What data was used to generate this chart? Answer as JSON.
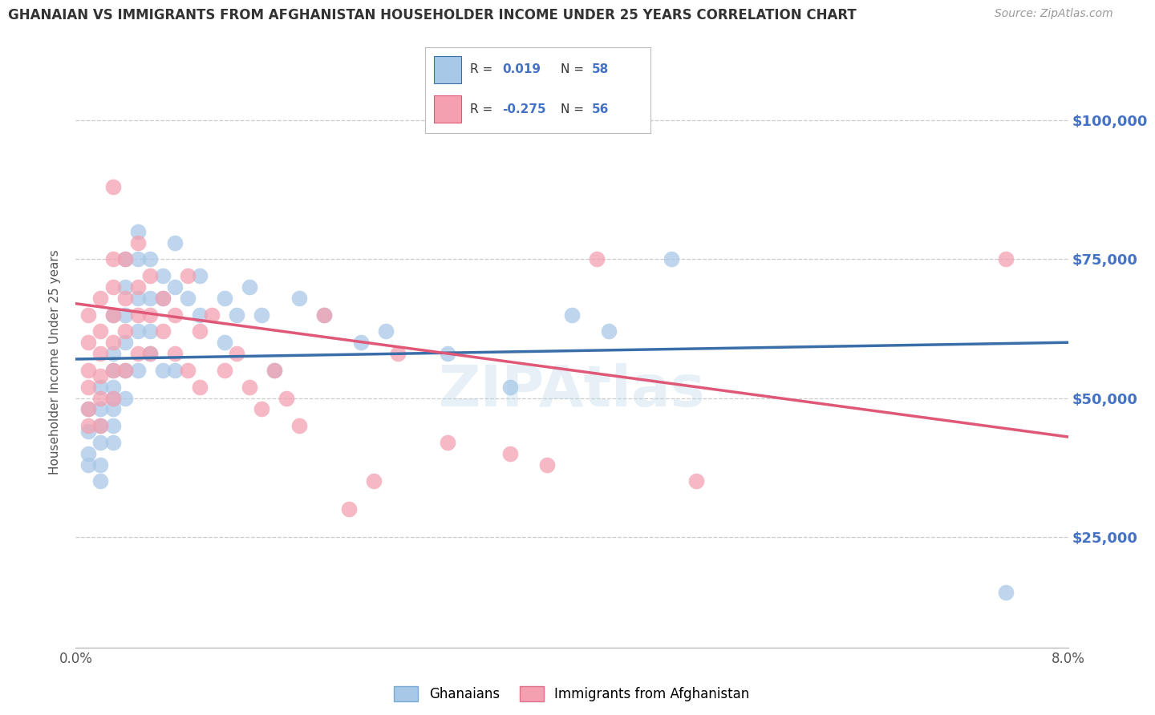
{
  "title": "GHANAIAN VS IMMIGRANTS FROM AFGHANISTAN HOUSEHOLDER INCOME UNDER 25 YEARS CORRELATION CHART",
  "source": "Source: ZipAtlas.com",
  "ylabel": "Householder Income Under 25 years",
  "legend_label_blue": "Ghanaians",
  "legend_label_pink": "Immigrants from Afghanistan",
  "ytick_labels": [
    "$25,000",
    "$50,000",
    "$75,000",
    "$100,000"
  ],
  "ytick_values": [
    25000,
    50000,
    75000,
    100000
  ],
  "blue_color": "#A8C8E8",
  "pink_color": "#F4A0B0",
  "blue_line_color": "#3A6EA8",
  "pink_line_color": "#E05878",
  "background_color": "#FFFFFF",
  "blue_dots": [
    [
      0.001,
      48000
    ],
    [
      0.001,
      44000
    ],
    [
      0.001,
      40000
    ],
    [
      0.001,
      38000
    ],
    [
      0.002,
      52000
    ],
    [
      0.002,
      48000
    ],
    [
      0.002,
      45000
    ],
    [
      0.002,
      42000
    ],
    [
      0.002,
      38000
    ],
    [
      0.002,
      35000
    ],
    [
      0.003,
      55000
    ],
    [
      0.003,
      52000
    ],
    [
      0.003,
      50000
    ],
    [
      0.003,
      48000
    ],
    [
      0.003,
      45000
    ],
    [
      0.003,
      42000
    ],
    [
      0.003,
      58000
    ],
    [
      0.003,
      65000
    ],
    [
      0.004,
      75000
    ],
    [
      0.004,
      70000
    ],
    [
      0.004,
      65000
    ],
    [
      0.004,
      60000
    ],
    [
      0.004,
      55000
    ],
    [
      0.004,
      50000
    ],
    [
      0.005,
      80000
    ],
    [
      0.005,
      75000
    ],
    [
      0.005,
      68000
    ],
    [
      0.005,
      62000
    ],
    [
      0.005,
      55000
    ],
    [
      0.006,
      75000
    ],
    [
      0.006,
      68000
    ],
    [
      0.006,
      62000
    ],
    [
      0.006,
      58000
    ],
    [
      0.007,
      72000
    ],
    [
      0.007,
      68000
    ],
    [
      0.007,
      55000
    ],
    [
      0.008,
      78000
    ],
    [
      0.008,
      70000
    ],
    [
      0.008,
      55000
    ],
    [
      0.009,
      68000
    ],
    [
      0.01,
      72000
    ],
    [
      0.01,
      65000
    ],
    [
      0.012,
      68000
    ],
    [
      0.012,
      60000
    ],
    [
      0.013,
      65000
    ],
    [
      0.014,
      70000
    ],
    [
      0.015,
      65000
    ],
    [
      0.016,
      55000
    ],
    [
      0.018,
      68000
    ],
    [
      0.02,
      65000
    ],
    [
      0.023,
      60000
    ],
    [
      0.025,
      62000
    ],
    [
      0.03,
      58000
    ],
    [
      0.035,
      52000
    ],
    [
      0.04,
      65000
    ],
    [
      0.043,
      62000
    ],
    [
      0.048,
      75000
    ],
    [
      0.075,
      15000
    ]
  ],
  "pink_dots": [
    [
      0.001,
      65000
    ],
    [
      0.001,
      60000
    ],
    [
      0.001,
      55000
    ],
    [
      0.001,
      52000
    ],
    [
      0.001,
      48000
    ],
    [
      0.001,
      45000
    ],
    [
      0.002,
      68000
    ],
    [
      0.002,
      62000
    ],
    [
      0.002,
      58000
    ],
    [
      0.002,
      54000
    ],
    [
      0.002,
      50000
    ],
    [
      0.002,
      45000
    ],
    [
      0.003,
      75000
    ],
    [
      0.003,
      70000
    ],
    [
      0.003,
      65000
    ],
    [
      0.003,
      60000
    ],
    [
      0.003,
      55000
    ],
    [
      0.003,
      50000
    ],
    [
      0.003,
      88000
    ],
    [
      0.004,
      75000
    ],
    [
      0.004,
      68000
    ],
    [
      0.004,
      62000
    ],
    [
      0.004,
      55000
    ],
    [
      0.005,
      78000
    ],
    [
      0.005,
      70000
    ],
    [
      0.005,
      65000
    ],
    [
      0.005,
      58000
    ],
    [
      0.006,
      72000
    ],
    [
      0.006,
      65000
    ],
    [
      0.006,
      58000
    ],
    [
      0.007,
      68000
    ],
    [
      0.007,
      62000
    ],
    [
      0.008,
      65000
    ],
    [
      0.008,
      58000
    ],
    [
      0.009,
      72000
    ],
    [
      0.009,
      55000
    ],
    [
      0.01,
      62000
    ],
    [
      0.01,
      52000
    ],
    [
      0.011,
      65000
    ],
    [
      0.012,
      55000
    ],
    [
      0.013,
      58000
    ],
    [
      0.014,
      52000
    ],
    [
      0.015,
      48000
    ],
    [
      0.016,
      55000
    ],
    [
      0.017,
      50000
    ],
    [
      0.018,
      45000
    ],
    [
      0.02,
      65000
    ],
    [
      0.022,
      30000
    ],
    [
      0.024,
      35000
    ],
    [
      0.026,
      58000
    ],
    [
      0.03,
      42000
    ],
    [
      0.035,
      40000
    ],
    [
      0.038,
      38000
    ],
    [
      0.042,
      75000
    ],
    [
      0.05,
      35000
    ],
    [
      0.075,
      75000
    ]
  ],
  "x_min": 0.0,
  "x_max": 0.08,
  "y_min": 5000,
  "y_max": 108000,
  "blue_trend_x": [
    0.0,
    0.08
  ],
  "blue_trend_y": [
    57000,
    60000
  ],
  "pink_trend_x": [
    0.0,
    0.08
  ],
  "pink_trend_y": [
    67000,
    43000
  ]
}
